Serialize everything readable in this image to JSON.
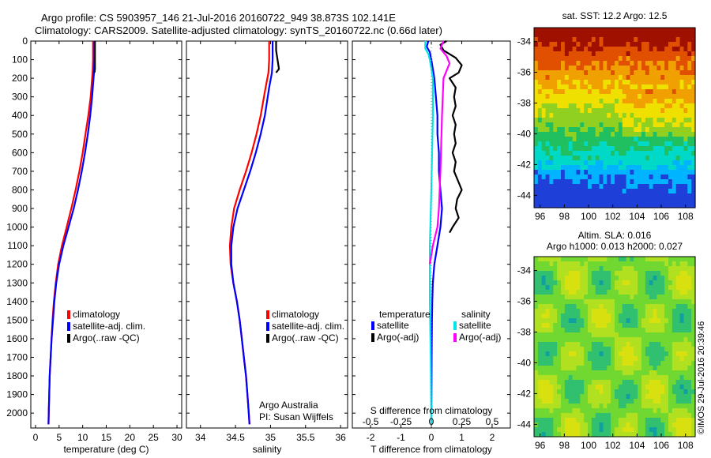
{
  "header": {
    "title_line1": "Argo profile: CS 5903957_146 21-Jul-2016 20160722_949 38.873S 102.141E",
    "title_line2": "Climatology: CARS2009. Satellite-adjusted climatology: synTS_20160722.nc (0.66d later)"
  },
  "watermark": "©IMOS 29-Jul-2016 20:39:46",
  "colors": {
    "climatology": "#ff0000",
    "satellite": "#0000ff",
    "argo": "#000000",
    "sal_satellite": "#00e5e5",
    "sal_argo": "#ff00ff"
  },
  "chart_data": [
    {
      "type": "line",
      "name": "temperature-profile",
      "xlabel": "temperature (deg C)",
      "ylabel": "",
      "xlim": [
        -1,
        31
      ],
      "ylim": [
        0,
        2080
      ],
      "y_inverted": true,
      "x_ticks": [
        0,
        5,
        10,
        15,
        20,
        25,
        30
      ],
      "y_ticks": [
        0,
        100,
        200,
        300,
        400,
        500,
        600,
        700,
        800,
        900,
        1000,
        1100,
        1200,
        1300,
        1400,
        1500,
        1600,
        1700,
        1800,
        1900,
        2000
      ],
      "legend": [
        "climatology",
        "satellite-adj. clim.",
        "Argo(..raw -QC)"
      ],
      "legend_placement": "lower-right",
      "series": [
        {
          "name": "climatology",
          "color": "#ff0000",
          "points": [
            [
              12.2,
              0
            ],
            [
              12.2,
              100
            ],
            [
              12.1,
              170
            ],
            [
              12.0,
              200
            ],
            [
              11.7,
              300
            ],
            [
              11.2,
              400
            ],
            [
              10.6,
              500
            ],
            [
              10.0,
              600
            ],
            [
              9.3,
              700
            ],
            [
              8.5,
              800
            ],
            [
              7.6,
              900
            ],
            [
              6.6,
              1000
            ],
            [
              5.6,
              1100
            ],
            [
              4.8,
              1200
            ],
            [
              4.3,
              1300
            ],
            [
              3.9,
              1400
            ],
            [
              3.6,
              1500
            ],
            [
              3.4,
              1600
            ],
            [
              3.2,
              1700
            ],
            [
              3.0,
              1800
            ],
            [
              2.9,
              1900
            ],
            [
              2.8,
              2000
            ],
            [
              2.75,
              2060
            ]
          ]
        },
        {
          "name": "satellite-adj. clim.",
          "color": "#0000ff",
          "points": [
            [
              12.5,
              0
            ],
            [
              12.5,
              100
            ],
            [
              12.4,
              170
            ],
            [
              12.3,
              200
            ],
            [
              12.0,
              300
            ],
            [
              11.6,
              400
            ],
            [
              11.1,
              500
            ],
            [
              10.5,
              600
            ],
            [
              9.8,
              700
            ],
            [
              9.0,
              800
            ],
            [
              8.1,
              900
            ],
            [
              7.0,
              1000
            ],
            [
              5.9,
              1100
            ],
            [
              5.0,
              1200
            ],
            [
              4.4,
              1300
            ],
            [
              4.0,
              1400
            ],
            [
              3.7,
              1500
            ],
            [
              3.4,
              1600
            ],
            [
              3.2,
              1700
            ],
            [
              3.0,
              1800
            ],
            [
              2.9,
              1900
            ],
            [
              2.8,
              2000
            ],
            [
              2.75,
              2060
            ]
          ]
        },
        {
          "name": "Argo(..raw -QC)",
          "color": "#000000",
          "points": [
            [
              12.6,
              0
            ],
            [
              12.6,
              50
            ],
            [
              12.6,
              100
            ],
            [
              12.6,
              150
            ],
            [
              12.5,
              170
            ]
          ]
        }
      ]
    },
    {
      "type": "line",
      "name": "salinity-profile",
      "xlabel": "salinity",
      "ylabel": "",
      "xlim": [
        33.8,
        36.1
      ],
      "ylim": [
        0,
        2080
      ],
      "y_inverted": true,
      "x_ticks": [
        34,
        34.5,
        35,
        35.5,
        36
      ],
      "legend": [
        "climatology",
        "satellite-adj. clim.",
        "Argo(..raw -QC)"
      ],
      "legend_placement": "lower-right",
      "annotation": [
        "Argo Australia",
        "PI: Susan Wijffels"
      ],
      "series": [
        {
          "name": "climatology",
          "color": "#ff0000",
          "points": [
            [
              34.98,
              0
            ],
            [
              34.98,
              100
            ],
            [
              34.97,
              170
            ],
            [
              34.93,
              250
            ],
            [
              34.86,
              400
            ],
            [
              34.8,
              500
            ],
            [
              34.73,
              600
            ],
            [
              34.65,
              700
            ],
            [
              34.56,
              800
            ],
            [
              34.48,
              900
            ],
            [
              34.44,
              1000
            ],
            [
              34.42,
              1100
            ],
            [
              34.43,
              1200
            ],
            [
              34.47,
              1300
            ],
            [
              34.52,
              1400
            ],
            [
              34.56,
              1500
            ],
            [
              34.59,
              1600
            ],
            [
              34.62,
              1700
            ],
            [
              34.65,
              1800
            ],
            [
              34.67,
              1900
            ],
            [
              34.69,
              2000
            ],
            [
              34.7,
              2060
            ]
          ]
        },
        {
          "name": "satellite-adj. clim.",
          "color": "#0000ff",
          "points": [
            [
              35.03,
              0
            ],
            [
              35.03,
              100
            ],
            [
              35.02,
              170
            ],
            [
              34.98,
              250
            ],
            [
              34.92,
              400
            ],
            [
              34.86,
              500
            ],
            [
              34.79,
              600
            ],
            [
              34.71,
              700
            ],
            [
              34.62,
              800
            ],
            [
              34.53,
              900
            ],
            [
              34.47,
              1000
            ],
            [
              34.44,
              1100
            ],
            [
              34.44,
              1200
            ],
            [
              34.47,
              1300
            ],
            [
              34.52,
              1400
            ],
            [
              34.56,
              1500
            ],
            [
              34.59,
              1600
            ],
            [
              34.62,
              1700
            ],
            [
              34.65,
              1800
            ],
            [
              34.67,
              1900
            ],
            [
              34.69,
              2000
            ],
            [
              34.7,
              2060
            ]
          ]
        },
        {
          "name": "Argo(..raw -QC)",
          "color": "#000000",
          "points": [
            [
              35.08,
              0
            ],
            [
              35.08,
              50
            ],
            [
              35.1,
              100
            ],
            [
              35.12,
              150
            ],
            [
              35.08,
              170
            ]
          ]
        }
      ]
    },
    {
      "type": "line",
      "name": "difference-profile",
      "xlabel": "T difference from climatology",
      "top_label": "S difference from climatology",
      "xlim": [
        -2.6,
        2.6
      ],
      "ylim": [
        0,
        2080
      ],
      "y_inverted": true,
      "x_ticks_bottom": [
        -2,
        -1,
        0,
        1,
        2
      ],
      "x_ticks_top_labels": [
        "-0.5",
        "-0.25",
        "0",
        "0.25",
        "0.5"
      ],
      "x_ticks_top_positions": [
        -2,
        -1,
        0,
        1,
        2
      ],
      "legend_headers": [
        "temperature",
        "salinity"
      ],
      "legend": [
        "satellite",
        "Argo(-adj)",
        "satellite",
        "Argo(-adj)"
      ],
      "legend_placement": "lower",
      "series": [
        {
          "name": "temperature satellite",
          "color": "#0000ff",
          "points": [
            [
              -0.1,
              0
            ],
            [
              -0.15,
              30
            ],
            [
              -0.05,
              60
            ],
            [
              0.0,
              100
            ],
            [
              0.05,
              150
            ],
            [
              0.1,
              200
            ],
            [
              0.15,
              300
            ],
            [
              0.2,
              400
            ],
            [
              0.2,
              500
            ],
            [
              0.25,
              600
            ],
            [
              0.25,
              700
            ],
            [
              0.3,
              800
            ],
            [
              0.35,
              900
            ],
            [
              0.3,
              1000
            ],
            [
              0.2,
              1100
            ],
            [
              0.1,
              1200
            ],
            [
              0.05,
              1300
            ],
            [
              0.03,
              1400
            ],
            [
              0.02,
              1500
            ],
            [
              0.01,
              1700
            ],
            [
              0.0,
              2060
            ]
          ]
        },
        {
          "name": "temperature Argo(-adj)",
          "color": "#000000",
          "points": [
            [
              0.5,
              0
            ],
            [
              0.3,
              20
            ],
            [
              0.4,
              50
            ],
            [
              0.8,
              90
            ],
            [
              1.0,
              130
            ],
            [
              0.9,
              170
            ],
            [
              0.6,
              200
            ],
            [
              0.8,
              250
            ],
            [
              0.75,
              300
            ],
            [
              0.8,
              350
            ],
            [
              0.7,
              400
            ],
            [
              0.8,
              450
            ],
            [
              0.75,
              500
            ],
            [
              0.8,
              550
            ],
            [
              0.7,
              600
            ],
            [
              0.8,
              650
            ],
            [
              0.75,
              700
            ],
            [
              0.9,
              760
            ],
            [
              1.0,
              800
            ],
            [
              0.85,
              850
            ],
            [
              0.8,
              900
            ],
            [
              0.9,
              950
            ],
            [
              0.7,
              1000
            ],
            [
              0.6,
              1030
            ]
          ]
        },
        {
          "name": "salinity satellite",
          "color": "#00e5e5",
          "points": [
            [
              -0.2,
              0
            ],
            [
              -0.2,
              40
            ],
            [
              -0.1,
              70
            ],
            [
              -0.05,
              100
            ],
            [
              0.05,
              200
            ],
            [
              0.05,
              400
            ],
            [
              0.0,
              800
            ],
            [
              -0.05,
              1100
            ],
            [
              -0.05,
              1400
            ],
            [
              -0.02,
              1700
            ],
            [
              0.0,
              2060
            ]
          ]
        },
        {
          "name": "salinity Argo(-adj)",
          "color": "#ff00ff",
          "points": [
            [
              0.4,
              0
            ],
            [
              0.3,
              40
            ],
            [
              0.5,
              80
            ],
            [
              0.6,
              120
            ],
            [
              0.5,
              160
            ],
            [
              0.4,
              200
            ],
            [
              0.35,
              400
            ],
            [
              0.3,
              700
            ],
            [
              0.25,
              900
            ],
            [
              0.2,
              1000
            ],
            [
              0.05,
              1100
            ],
            [
              -0.05,
              1200
            ]
          ]
        }
      ]
    },
    {
      "type": "heatmap",
      "name": "sst-map",
      "title": "sat. SST: 12.2 Argo: 12.5",
      "xlim": [
        95.5,
        108.8
      ],
      "ylim": [
        -44.8,
        -33.1
      ],
      "x_ticks": [
        96,
        98,
        100,
        102,
        104,
        106,
        108
      ],
      "y_ticks": [
        -34,
        -36,
        -38,
        -40,
        -42,
        -44
      ],
      "colormap": [
        "#1f40d8",
        "#00b4ff",
        "#00d8c8",
        "#20c060",
        "#90d020",
        "#f0e000",
        "#f0a000",
        "#e05000",
        "#a01000"
      ]
    },
    {
      "type": "heatmap",
      "name": "sla-map",
      "title_lines": [
        "Altim. SLA: 0.016",
        "Argo h1000: 0.013 h2000: 0.027"
      ],
      "xlim": [
        95.5,
        108.8
      ],
      "ylim": [
        -44.8,
        -33.1
      ],
      "x_ticks": [
        96,
        98,
        100,
        102,
        104,
        106,
        108
      ],
      "y_ticks": [
        -34,
        -36,
        -38,
        -40,
        -42,
        -44
      ],
      "colormap": [
        "#10a0a0",
        "#30c070",
        "#70d830",
        "#b0e020",
        "#d8e010"
      ]
    }
  ]
}
